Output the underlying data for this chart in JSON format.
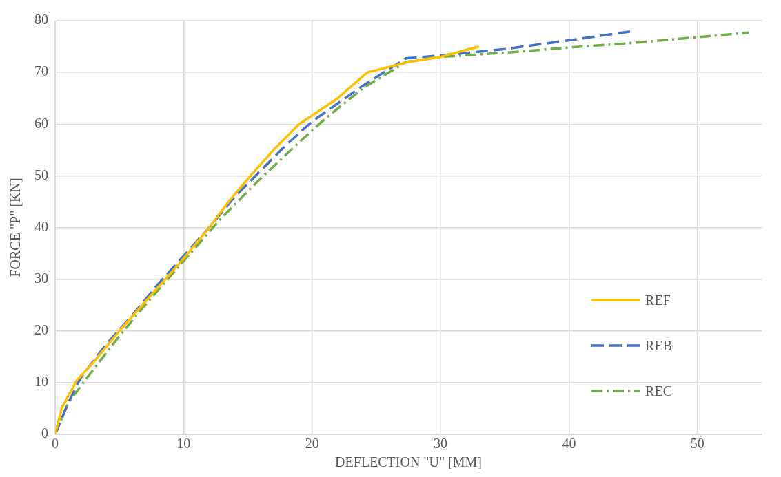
{
  "chart_data": {
    "type": "line",
    "xlabel": "DEFLECTION \"U\" [MM]",
    "ylabel": "FORCE \"P\" [KN]",
    "xlim": [
      0,
      55
    ],
    "xticks": [
      0,
      10,
      20,
      30,
      40,
      50
    ],
    "ylim": [
      0,
      80
    ],
    "yticks": [
      0,
      10,
      20,
      30,
      40,
      50,
      60,
      70,
      80
    ],
    "grid": true,
    "legend": "right",
    "marker": "none",
    "series": [
      {
        "name": "REF",
        "color": "#ffc000",
        "line_style": "solid",
        "x": [
          0,
          0.5,
          1.7,
          3,
          5,
          7.5,
          10,
          12,
          13.5,
          15.2,
          17,
          19,
          22,
          24.3,
          27.5,
          30,
          33
        ],
        "values": [
          0,
          5,
          10.5,
          14,
          20,
          27,
          34,
          40,
          45,
          50,
          55,
          60,
          65,
          70,
          72,
          73,
          75
        ]
      },
      {
        "name": "REB",
        "color": "#4472c4",
        "line_style": "dashed",
        "x": [
          0,
          1,
          2,
          4,
          6,
          8,
          10,
          12,
          14,
          16,
          18,
          20,
          22,
          24,
          27.3,
          30,
          35,
          40,
          45
        ],
        "values": [
          0,
          6,
          11,
          17.5,
          23,
          29,
          34.5,
          40,
          46,
          51,
          56,
          60.5,
          64,
          67.5,
          72.7,
          73.3,
          74.5,
          76.2,
          78
        ]
      },
      {
        "name": "REC",
        "color": "#70ad47",
        "line_style": "dashdot",
        "x": [
          0,
          1,
          2.5,
          5,
          7,
          10,
          13,
          16,
          19,
          21,
          24,
          27.3,
          30,
          35,
          40,
          45,
          50,
          54
        ],
        "values": [
          0,
          6,
          11,
          19,
          25,
          33.5,
          42,
          49.5,
          56.5,
          61,
          67,
          72,
          73,
          73.8,
          74.8,
          75.7,
          76.8,
          77.7
        ]
      }
    ]
  }
}
